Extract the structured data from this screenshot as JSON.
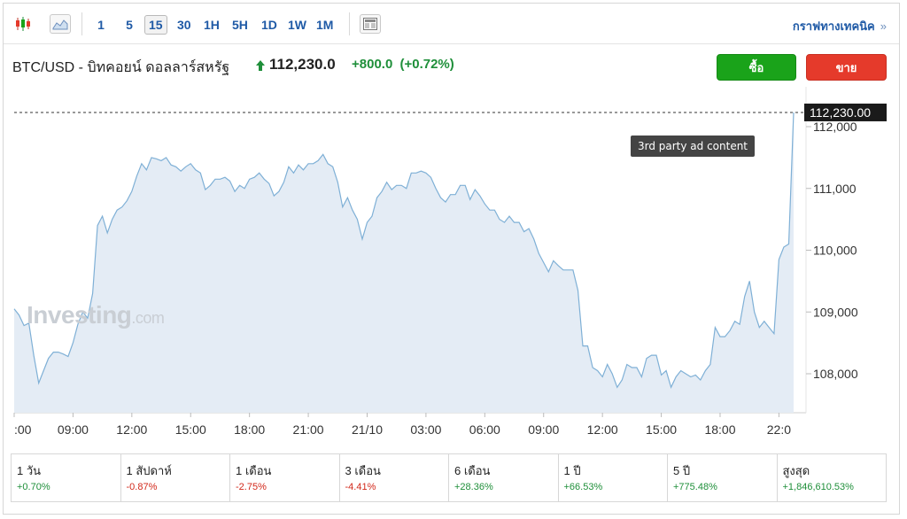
{
  "toolbar": {
    "timeframes": [
      "1",
      "5",
      "15",
      "30",
      "1H",
      "5H",
      "1D",
      "1W",
      "1M"
    ],
    "active_timeframe": "15",
    "technical_link": "กราฟทางเทคนิค",
    "technical_chevron": "»"
  },
  "header": {
    "symbol": "BTC/USD - บิทคอยน์ ดอลลาร์สหรัฐ",
    "price": "112,230.0",
    "change": "+800.0",
    "change_pct": "(+0.72%)",
    "buy_label": "ซื้อ",
    "sell_label": "ขาย"
  },
  "colors": {
    "accent_link": "#1f5aa6",
    "positive": "#1f8f3a",
    "negative": "#d2281a",
    "buy": "#1aa31a",
    "sell": "#e53a2b",
    "line": "#7fb0d6",
    "area": "#e4ecf5"
  },
  "tooltip": "3rd party ad content",
  "watermark": {
    "brand": "Investing",
    "domain": ".com"
  },
  "chart_data": {
    "type": "area",
    "ylim": [
      107350,
      112500
    ],
    "yticks": [
      108000,
      109000,
      110000,
      111000,
      112000
    ],
    "ytick_labels": [
      "108,000",
      "109,000",
      "110,000",
      "111,000",
      "112,000"
    ],
    "current_price_label": "112,230.00",
    "current_price": 112230,
    "xtick_labels": [
      ":00",
      "09:00",
      "12:00",
      "15:00",
      "18:00",
      "21:00",
      "21/10",
      "03:00",
      "06:00",
      "09:00",
      "12:00",
      "15:00",
      "18:00",
      "22:0"
    ],
    "x_start": "06:00",
    "interval_minutes": 15,
    "values": [
      109050,
      108950,
      108780,
      108820,
      108300,
      107850,
      108050,
      108250,
      108350,
      108350,
      108320,
      108280,
      108500,
      108800,
      109000,
      108900,
      109300,
      110400,
      110550,
      110280,
      110500,
      110650,
      110700,
      110800,
      110950,
      111200,
      111400,
      111300,
      111500,
      111480,
      111450,
      111500,
      111380,
      111350,
      111280,
      111350,
      111400,
      111300,
      111250,
      110980,
      111050,
      111150,
      111150,
      111180,
      111120,
      110950,
      111050,
      111000,
      111150,
      111180,
      111250,
      111150,
      111080,
      110880,
      110950,
      111100,
      111350,
      111250,
      111380,
      111300,
      111400,
      111400,
      111450,
      111550,
      111400,
      111350,
      111100,
      110700,
      110850,
      110650,
      110500,
      110180,
      110450,
      110550,
      110850,
      110950,
      111100,
      110980,
      111050,
      111050,
      111000,
      111250,
      111250,
      111280,
      111250,
      111180,
      111000,
      110850,
      110780,
      110900,
      110900,
      111050,
      111050,
      110820,
      110980,
      110880,
      110750,
      110650,
      110650,
      110500,
      110450,
      110550,
      110450,
      110450,
      110300,
      110350,
      110180,
      109950,
      109800,
      109650,
      109830,
      109750,
      109680,
      109680,
      109680,
      109350,
      108450,
      108450,
      108100,
      108050,
      107950,
      108150,
      108000,
      107780,
      107900,
      108150,
      108100,
      108100,
      107950,
      108250,
      108300,
      108300,
      107980,
      108050,
      107780,
      107950,
      108050,
      108000,
      107950,
      107980,
      107900,
      108050,
      108150,
      108750,
      108600,
      108600,
      108700,
      108850,
      108800,
      109250,
      109500,
      109000,
      108750,
      108850,
      108750,
      108650,
      109850,
      110050,
      110100,
      112230
    ]
  },
  "stats": [
    {
      "label": "1 วัน",
      "value": "+0.70%",
      "dir": "pos"
    },
    {
      "label": "1 สัปดาห์",
      "value": "-0.87%",
      "dir": "neg"
    },
    {
      "label": "1 เดือน",
      "value": "-2.75%",
      "dir": "neg"
    },
    {
      "label": "3 เดือน",
      "value": "-4.41%",
      "dir": "neg"
    },
    {
      "label": "6 เดือน",
      "value": "+28.36%",
      "dir": "pos"
    },
    {
      "label": "1 ปี",
      "value": "+66.53%",
      "dir": "pos"
    },
    {
      "label": "5 ปี",
      "value": "+775.48%",
      "dir": "pos"
    },
    {
      "label": "สูงสุด",
      "value": "+1,846,610.53%",
      "dir": "pos"
    }
  ]
}
